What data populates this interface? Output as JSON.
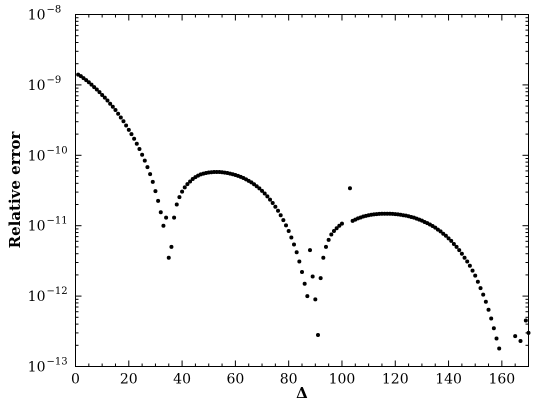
{
  "chart_data": {
    "type": "scatter",
    "xlabel": "Δ",
    "ylabel": "Relative error",
    "xlim": [
      0,
      170
    ],
    "ylim": [
      1e-13,
      1e-08
    ],
    "yscale": "log",
    "grid": false,
    "legend": "none",
    "marker_color": "#000000",
    "x_ticks": [
      0,
      20,
      40,
      60,
      80,
      100,
      120,
      140,
      160
    ],
    "x_tick_labels": [
      "0",
      "20",
      "40",
      "60",
      "80",
      "100",
      "120",
      "140",
      "160"
    ],
    "y_ticks": [
      1e-13,
      1e-12,
      1e-11,
      1e-10,
      1e-09,
      1e-08
    ],
    "y_tick_labels": [
      {
        "base": "10",
        "exp": "−13"
      },
      {
        "base": "10",
        "exp": "−12"
      },
      {
        "base": "10",
        "exp": "−11"
      },
      {
        "base": "10",
        "exp": "−10"
      },
      {
        "base": "10",
        "exp": "−9"
      },
      {
        "base": "10",
        "exp": "−8"
      }
    ],
    "series": [
      {
        "points": [
          [
            1,
            1.4e-09
          ],
          [
            2,
            1.33e-09
          ],
          [
            3,
            1.25e-09
          ],
          [
            4,
            1.17e-09
          ],
          [
            5,
            1.09e-09
          ],
          [
            6,
            1.01e-09
          ],
          [
            7,
            9.3e-10
          ],
          [
            8,
            8.6e-10
          ],
          [
            9,
            7.9e-10
          ],
          [
            10,
            7.2e-10
          ],
          [
            11,
            6.6e-10
          ],
          [
            12,
            6e-10
          ],
          [
            13,
            5.4e-10
          ],
          [
            14,
            4.9e-10
          ],
          [
            15,
            4.4e-10
          ],
          [
            16,
            3.9e-10
          ],
          [
            17,
            3.45e-10
          ],
          [
            18,
            3.05e-10
          ],
          [
            19,
            2.65e-10
          ],
          [
            20,
            2.3e-10
          ],
          [
            21,
            2e-10
          ],
          [
            22,
            1.72e-10
          ],
          [
            23,
            1.46e-10
          ],
          [
            24,
            1.23e-10
          ],
          [
            25,
            1.02e-10
          ],
          [
            26,
            8.4e-11
          ],
          [
            27,
            6.8e-11
          ],
          [
            28,
            5.4e-11
          ],
          [
            29,
            4.2e-11
          ],
          [
            30,
            3.1e-11
          ],
          [
            31,
            2.25e-11
          ],
          [
            32,
            1.55e-11
          ],
          [
            33,
            1e-11
          ],
          [
            34,
            1.3e-11
          ],
          [
            35,
            3.5e-12
          ],
          [
            36,
            5e-12
          ],
          [
            37,
            1.3e-11
          ],
          [
            38,
            2e-11
          ],
          [
            39,
            2.55e-11
          ],
          [
            40,
            3.05e-11
          ],
          [
            41,
            3.5e-11
          ],
          [
            42,
            3.9e-11
          ],
          [
            43,
            4.25e-11
          ],
          [
            44,
            4.6e-11
          ],
          [
            45,
            4.9e-11
          ],
          [
            46,
            5.15e-11
          ],
          [
            47,
            5.35e-11
          ],
          [
            48,
            5.5e-11
          ],
          [
            49,
            5.6e-11
          ],
          [
            50,
            5.7e-11
          ],
          [
            51,
            5.75e-11
          ],
          [
            52,
            5.8e-11
          ],
          [
            53,
            5.8e-11
          ],
          [
            54,
            5.78e-11
          ],
          [
            55,
            5.74e-11
          ],
          [
            56,
            5.68e-11
          ],
          [
            57,
            5.6e-11
          ],
          [
            58,
            5.5e-11
          ],
          [
            59,
            5.38e-11
          ],
          [
            60,
            5.25e-11
          ],
          [
            61,
            5.1e-11
          ],
          [
            62,
            4.93e-11
          ],
          [
            63,
            4.75e-11
          ],
          [
            64,
            4.55e-11
          ],
          [
            65,
            4.34e-11
          ],
          [
            66,
            4.12e-11
          ],
          [
            67,
            3.88e-11
          ],
          [
            68,
            3.64e-11
          ],
          [
            69,
            3.39e-11
          ],
          [
            70,
            3.13e-11
          ],
          [
            71,
            2.87e-11
          ],
          [
            72,
            2.61e-11
          ],
          [
            73,
            2.35e-11
          ],
          [
            74,
            2.1e-11
          ],
          [
            75,
            1.86e-11
          ],
          [
            76,
            1.63e-11
          ],
          [
            77,
            1.41e-11
          ],
          [
            78,
            1.2e-11
          ],
          [
            79,
            1.01e-11
          ],
          [
            80,
            8.4e-12
          ],
          [
            81,
            6.8e-12
          ],
          [
            82,
            5.4e-12
          ],
          [
            83,
            4.2e-12
          ],
          [
            84,
            3.1e-12
          ],
          [
            85,
            2.2e-12
          ],
          [
            86,
            1.5e-12
          ],
          [
            87,
            1e-12
          ],
          [
            88,
            4.5e-12
          ],
          [
            89,
            1.9e-12
          ],
          [
            90,
            9e-13
          ],
          [
            91,
            2.8e-13
          ],
          [
            92,
            1.8e-12
          ],
          [
            93,
            3.5e-12
          ],
          [
            94,
            5e-12
          ],
          [
            95,
            6.3e-12
          ],
          [
            96,
            7.5e-12
          ],
          [
            97,
            8.4e-12
          ],
          [
            98,
            9.2e-12
          ],
          [
            99,
            1e-11
          ],
          [
            100,
            1.07e-11
          ],
          [
            103,
            3.4e-11
          ],
          [
            104,
            1.17e-11
          ],
          [
            105,
            1.22e-11
          ],
          [
            106,
            1.27e-11
          ],
          [
            107,
            1.31e-11
          ],
          [
            108,
            1.35e-11
          ],
          [
            109,
            1.38e-11
          ],
          [
            110,
            1.41e-11
          ],
          [
            111,
            1.43e-11
          ],
          [
            112,
            1.45e-11
          ],
          [
            113,
            1.46e-11
          ],
          [
            114,
            1.47e-11
          ],
          [
            115,
            1.48e-11
          ],
          [
            116,
            1.48e-11
          ],
          [
            117,
            1.48e-11
          ],
          [
            118,
            1.48e-11
          ],
          [
            119,
            1.47e-11
          ],
          [
            120,
            1.46e-11
          ],
          [
            121,
            1.45e-11
          ],
          [
            122,
            1.43e-11
          ],
          [
            123,
            1.41e-11
          ],
          [
            124,
            1.39e-11
          ],
          [
            125,
            1.36e-11
          ],
          [
            126,
            1.33e-11
          ],
          [
            127,
            1.3e-11
          ],
          [
            128,
            1.26e-11
          ],
          [
            129,
            1.22e-11
          ],
          [
            130,
            1.18e-11
          ],
          [
            131,
            1.13e-11
          ],
          [
            132,
            1.09e-11
          ],
          [
            133,
            1.04e-11
          ],
          [
            134,
            9.9e-12
          ],
          [
            135,
            9.4e-12
          ],
          [
            136,
            8.8e-12
          ],
          [
            137,
            8.3e-12
          ],
          [
            138,
            7.7e-12
          ],
          [
            139,
            7.2e-12
          ],
          [
            140,
            6.6e-12
          ],
          [
            141,
            6.1e-12
          ],
          [
            142,
            5.5e-12
          ],
          [
            143,
            5e-12
          ],
          [
            144,
            4.5e-12
          ],
          [
            145,
            4e-12
          ],
          [
            146,
            3.5e-12
          ],
          [
            147,
            3.1e-12
          ],
          [
            148,
            2.7e-12
          ],
          [
            149,
            2.3e-12
          ],
          [
            150,
            1.95e-12
          ],
          [
            151,
            1.6e-12
          ],
          [
            152,
            1.3e-12
          ],
          [
            153,
            1.05e-12
          ],
          [
            154,
            8.3e-13
          ],
          [
            155,
            6.4e-13
          ],
          [
            156,
            4.8e-13
          ],
          [
            157,
            3.5e-13
          ],
          [
            158,
            2.5e-13
          ],
          [
            159,
            1.8e-13
          ],
          [
            165,
            2.7e-13
          ],
          [
            167,
            2.3e-13
          ],
          [
            169,
            4.5e-13
          ],
          [
            170,
            3e-13
          ]
        ]
      }
    ]
  }
}
